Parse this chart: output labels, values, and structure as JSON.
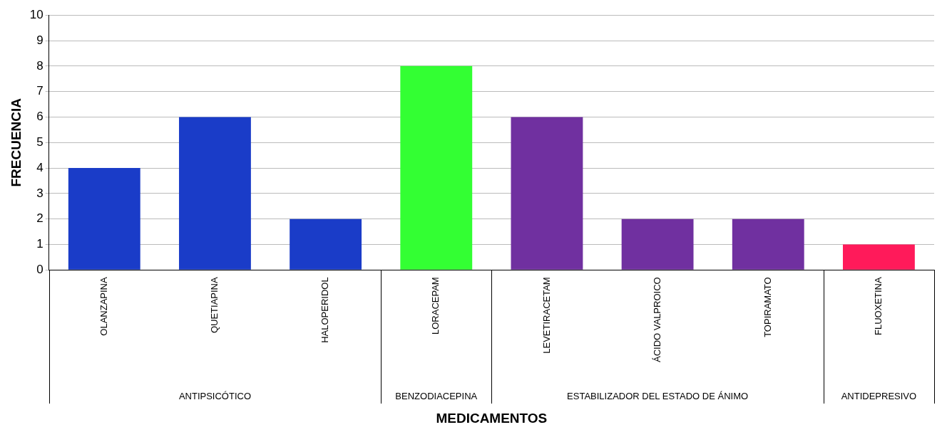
{
  "chart_data": {
    "type": "bar",
    "xlabel": "MEDICAMENTOS",
    "ylabel": "FRECUENCIA",
    "categories": [
      "OLANZAPINA",
      "QUETIAPINA",
      "HALOPERIDOL",
      "LORACEPAM",
      "LEVETIRACETAM",
      "ÁCIDO VALPROICO",
      "TOPIRAMATO",
      "FLUOXETINA"
    ],
    "values": [
      4,
      6,
      2,
      8,
      6,
      2,
      2,
      1
    ],
    "colors": [
      "#1a3cc8",
      "#1a3cc8",
      "#1a3cc8",
      "#33ff33",
      "#7030a0",
      "#7030a0",
      "#7030a0",
      "#ff1a5a"
    ],
    "annotations": [
      "ANTIPSICÓTICO",
      "BENZODIACEPINA",
      "ESTABILIZADOR DEL ESTADO DE ÁNIMO",
      "ANTIDEPRESIVO"
    ],
    "ylim": [
      0,
      10
    ],
    "yticks": [
      0,
      1,
      2,
      3,
      4,
      5,
      6,
      7,
      8,
      9,
      10
    ],
    "grid": "y",
    "legend": false
  }
}
